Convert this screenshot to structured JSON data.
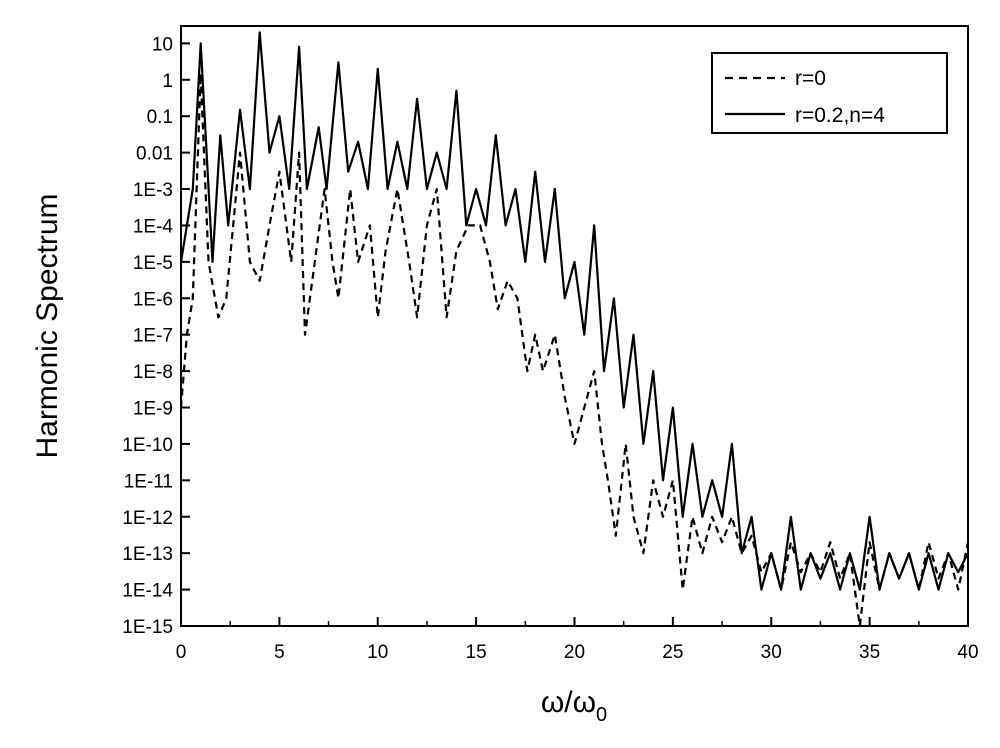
{
  "chart_data": {
    "type": "line",
    "title": "",
    "xlabel": "ω/ω",
    "xlabel_subscript": "0",
    "ylabel": "Harmonic Spectrum",
    "x_scale": "linear",
    "y_scale": "log",
    "xlim": [
      0,
      40
    ],
    "ylim": [
      1e-15,
      30
    ],
    "x_ticks": [
      0,
      5,
      10,
      15,
      20,
      25,
      30,
      35,
      40
    ],
    "x_tick_labels": [
      "0",
      "5",
      "10",
      "15",
      "20",
      "25",
      "30",
      "35",
      "40"
    ],
    "y_ticks": [
      1e-15,
      1e-14,
      1e-13,
      1e-12,
      1e-11,
      1e-10,
      1e-09,
      1e-08,
      1e-07,
      1e-06,
      1e-05,
      0.0001,
      0.001,
      0.01,
      0.1,
      1,
      10
    ],
    "y_tick_labels": [
      "1E-15",
      "1E-14",
      "1E-13",
      "1E-12",
      "1E-11",
      "1E-10",
      "1E-9",
      "1E-8",
      "1E-7",
      "1E-6",
      "1E-5",
      "1E-4",
      "1E-3",
      "0.01",
      "0.1",
      "1",
      "10"
    ],
    "grid": false,
    "legend_position": "top-right",
    "series": [
      {
        "name": "r=0",
        "style": "dashed",
        "color": "#000000",
        "points": [
          [
            0,
            1e-09
          ],
          [
            0.3,
            1e-07
          ],
          [
            0.6,
            1e-06
          ],
          [
            1.0,
            1.5
          ],
          [
            1.4,
            1e-05
          ],
          [
            1.9,
            3e-07
          ],
          [
            2.3,
            1e-06
          ],
          [
            3.0,
            0.01
          ],
          [
            3.5,
            1e-05
          ],
          [
            4.0,
            3e-06
          ],
          [
            4.5,
            0.0001
          ],
          [
            5.0,
            0.003
          ],
          [
            5.6,
            1e-05
          ],
          [
            6.0,
            0.01
          ],
          [
            6.3,
            1e-07
          ],
          [
            6.8,
            1e-05
          ],
          [
            7.3,
            0.001
          ],
          [
            7.7,
            1e-05
          ],
          [
            8.0,
            1e-06
          ],
          [
            8.6,
            0.001
          ],
          [
            9.0,
            1e-05
          ],
          [
            9.6,
            0.0001
          ],
          [
            10.0,
            3e-07
          ],
          [
            10.4,
            2e-05
          ],
          [
            11.0,
            0.001
          ],
          [
            11.6,
            1e-05
          ],
          [
            12.0,
            3e-07
          ],
          [
            12.5,
            0.0001
          ],
          [
            13.0,
            0.001
          ],
          [
            13.5,
            3e-07
          ],
          [
            14.0,
            2e-05
          ],
          [
            14.6,
            0.0001
          ],
          [
            15.2,
            0.0001
          ],
          [
            15.7,
            1e-05
          ],
          [
            16.1,
            5e-07
          ],
          [
            16.6,
            3e-06
          ],
          [
            17.1,
            1e-06
          ],
          [
            17.6,
            1e-08
          ],
          [
            18.0,
            1e-07
          ],
          [
            18.4,
            1e-08
          ],
          [
            19.0,
            1e-07
          ],
          [
            19.5,
            2e-09
          ],
          [
            20.0,
            1e-10
          ],
          [
            20.5,
            1e-09
          ],
          [
            21.0,
            1e-08
          ],
          [
            21.4,
            1e-10
          ],
          [
            21.7,
            1e-11
          ],
          [
            22.1,
            3e-13
          ],
          [
            22.6,
            1e-10
          ],
          [
            23.0,
            1e-12
          ],
          [
            23.5,
            1e-13
          ],
          [
            24.0,
            1e-11
          ],
          [
            24.5,
            1e-12
          ],
          [
            25.0,
            1e-11
          ],
          [
            25.5,
            1e-14
          ],
          [
            26.0,
            1e-12
          ],
          [
            26.5,
            1e-13
          ],
          [
            27.0,
            1e-12
          ],
          [
            27.5,
            2e-13
          ],
          [
            28.0,
            1e-12
          ],
          [
            28.5,
            1e-13
          ],
          [
            29.0,
            3e-13
          ],
          [
            29.5,
            3e-14
          ],
          [
            30.0,
            1e-13
          ],
          [
            30.5,
            1e-14
          ],
          [
            31.0,
            2e-13
          ],
          [
            31.5,
            3e-14
          ],
          [
            32.0,
            1e-13
          ],
          [
            32.5,
            3e-14
          ],
          [
            33.0,
            2e-13
          ],
          [
            33.5,
            2e-14
          ],
          [
            34.0,
            1e-13
          ],
          [
            34.5,
            1e-15
          ],
          [
            35.0,
            2e-13
          ],
          [
            35.5,
            1e-14
          ],
          [
            36.0,
            1e-13
          ],
          [
            36.5,
            2e-14
          ],
          [
            37.0,
            1e-13
          ],
          [
            37.5,
            1e-14
          ],
          [
            38.0,
            2e-13
          ],
          [
            38.5,
            2e-14
          ],
          [
            39.0,
            1e-13
          ],
          [
            39.5,
            1e-14
          ],
          [
            40.0,
            2e-13
          ]
        ]
      },
      {
        "name": "r=0.2,n=4",
        "style": "solid",
        "color": "#000000",
        "points": [
          [
            0,
            1e-05
          ],
          [
            0.3,
            0.0001
          ],
          [
            0.6,
            0.001
          ],
          [
            1.0,
            10
          ],
          [
            1.3,
            0.01
          ],
          [
            1.6,
            1e-05
          ],
          [
            2.0,
            0.03
          ],
          [
            2.4,
            0.0001
          ],
          [
            3.0,
            0.15
          ],
          [
            3.5,
            0.001
          ],
          [
            4.0,
            20
          ],
          [
            4.5,
            0.01
          ],
          [
            5.0,
            0.1
          ],
          [
            5.5,
            0.001
          ],
          [
            6.0,
            8
          ],
          [
            6.4,
            0.001
          ],
          [
            7.0,
            0.05
          ],
          [
            7.4,
            0.001
          ],
          [
            8.0,
            3
          ],
          [
            8.5,
            0.003
          ],
          [
            9.0,
            0.02
          ],
          [
            9.5,
            0.001
          ],
          [
            10.0,
            2
          ],
          [
            10.5,
            0.001
          ],
          [
            11.0,
            0.02
          ],
          [
            11.5,
            0.001
          ],
          [
            12.0,
            0.3
          ],
          [
            12.5,
            0.001
          ],
          [
            13.0,
            0.01
          ],
          [
            13.5,
            0.001
          ],
          [
            14.0,
            0.5
          ],
          [
            14.5,
            0.0001
          ],
          [
            15.0,
            0.001
          ],
          [
            15.5,
            0.0001
          ],
          [
            16.0,
            0.03
          ],
          [
            16.5,
            0.0001
          ],
          [
            17.0,
            0.001
          ],
          [
            17.5,
            1e-05
          ],
          [
            18.0,
            0.003
          ],
          [
            18.5,
            1e-05
          ],
          [
            19.0,
            0.001
          ],
          [
            19.5,
            1e-06
          ],
          [
            20.0,
            1e-05
          ],
          [
            20.5,
            1e-07
          ],
          [
            21.0,
            0.0001
          ],
          [
            21.5,
            1e-08
          ],
          [
            22.0,
            1e-06
          ],
          [
            22.5,
            1e-09
          ],
          [
            23.0,
            1e-07
          ],
          [
            23.5,
            1e-10
          ],
          [
            24.0,
            1e-08
          ],
          [
            24.5,
            1e-11
          ],
          [
            25.0,
            1e-09
          ],
          [
            25.5,
            1e-12
          ],
          [
            26.0,
            1e-10
          ],
          [
            26.5,
            1e-12
          ],
          [
            27.0,
            1e-11
          ],
          [
            27.5,
            1e-12
          ],
          [
            28.0,
            1e-10
          ],
          [
            28.5,
            1e-13
          ],
          [
            29.0,
            1e-12
          ],
          [
            29.5,
            1e-14
          ],
          [
            30.0,
            1e-13
          ],
          [
            30.5,
            1e-14
          ],
          [
            31.0,
            1e-12
          ],
          [
            31.5,
            1e-14
          ],
          [
            32.0,
            1e-13
          ],
          [
            32.5,
            2e-14
          ],
          [
            33.0,
            1e-13
          ],
          [
            33.5,
            1e-14
          ],
          [
            34.0,
            1e-13
          ],
          [
            34.5,
            1e-14
          ],
          [
            35.0,
            1e-12
          ],
          [
            35.5,
            1e-14
          ],
          [
            36.0,
            1e-13
          ],
          [
            36.5,
            2e-14
          ],
          [
            37.0,
            1e-13
          ],
          [
            37.5,
            1e-14
          ],
          [
            38.0,
            1e-13
          ],
          [
            38.5,
            1e-14
          ],
          [
            39.0,
            1e-13
          ],
          [
            39.5,
            3e-14
          ],
          [
            40.0,
            1e-13
          ]
        ]
      }
    ]
  }
}
